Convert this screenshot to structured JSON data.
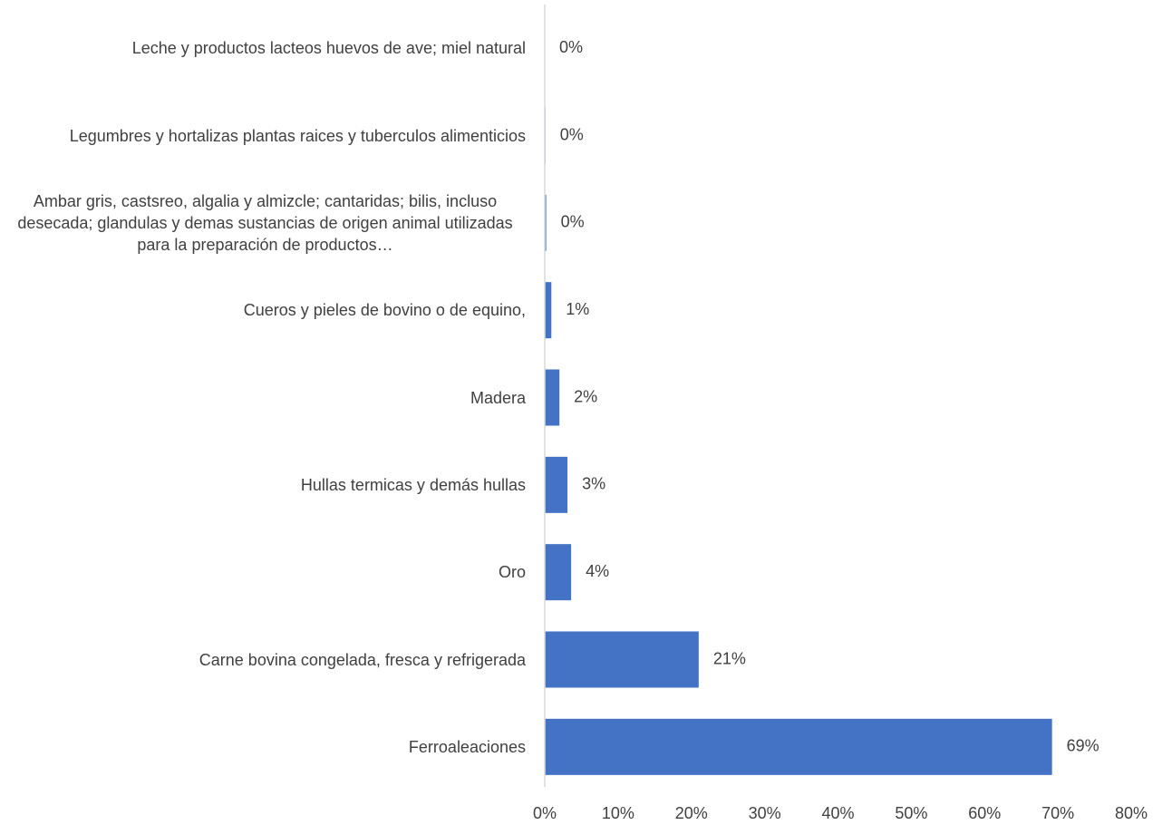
{
  "chart_data": {
    "type": "bar",
    "orientation": "horizontal",
    "categories": [
      "Leche y productos lacteos huevos de ave; miel natural",
      "Legumbres y hortalizas plantas raices y tuberculos alimenticios",
      "Ambar gris, castsreo, algalia y almizcle; cantaridas; bilis, incluso desecada; glandulas y demas sustancias de origen animal utilizadas para la preparación de productos…",
      "Cueros y pieles de bovino o de equino,",
      "Madera",
      "Hullas termicas y demás hullas",
      "Oro",
      "Carne bovina congelada, fresca y refrigerada",
      "Ferroaleaciones"
    ],
    "values": [
      0,
      0.1,
      0.2,
      0.9,
      2.0,
      3.1,
      3.6,
      21.0,
      69.2
    ],
    "value_labels": [
      "0%",
      "0%",
      "0%",
      "1%",
      "2%",
      "3%",
      "4%",
      "21%",
      "69%"
    ],
    "color": "#4472c4",
    "xlim": [
      0,
      80
    ],
    "xticks": [
      {
        "value": 0,
        "label": "0%"
      },
      {
        "value": 10,
        "label": "10%"
      },
      {
        "value": 20,
        "label": "20%"
      },
      {
        "value": 30,
        "label": "30%"
      },
      {
        "value": 40,
        "label": "40%"
      },
      {
        "value": 50,
        "label": "50%"
      },
      {
        "value": 60,
        "label": "60%"
      },
      {
        "value": 70,
        "label": "70%"
      },
      {
        "value": 80,
        "label": "80%"
      }
    ],
    "grid": false
  }
}
